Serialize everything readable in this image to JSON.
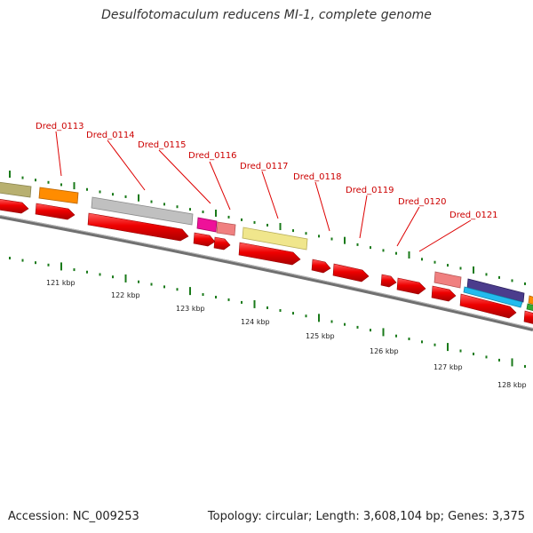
{
  "title": "Desulfotomaculum reducens MI-1, complete genome",
  "accession_text": "Accession: NC_009253",
  "summary_text": "Topology: circular; Length: 3,608,104 bp; Genes: 3,375",
  "gene_labels": [
    "Dred_0113",
    "Dred_0114",
    "Dred_0115",
    "Dred_0116",
    "Dred_0117",
    "Dred_0118",
    "Dred_0119",
    "Dred_0120",
    "Dred_0121"
  ],
  "kbp_labels": [
    "121 kbp",
    "122 kbp",
    "123 kbp",
    "124 kbp",
    "125 kbp",
    "126 kbp",
    "127 kbp",
    "128 kbp"
  ],
  "colors": {
    "gene_forward": "#ee0000",
    "label_red": "#cc0000",
    "backbone": "#888888",
    "tick_green": "#1a7a1a",
    "olive": "#b8b070",
    "orange": "#ff8c00",
    "gray": "#c0c0c0",
    "magenta": "#ee1199",
    "salmon": "#f08080",
    "khaki": "#f0e68c",
    "navy": "#4b3c8c",
    "cyan": "#22bbee",
    "green": "#33aa33"
  }
}
